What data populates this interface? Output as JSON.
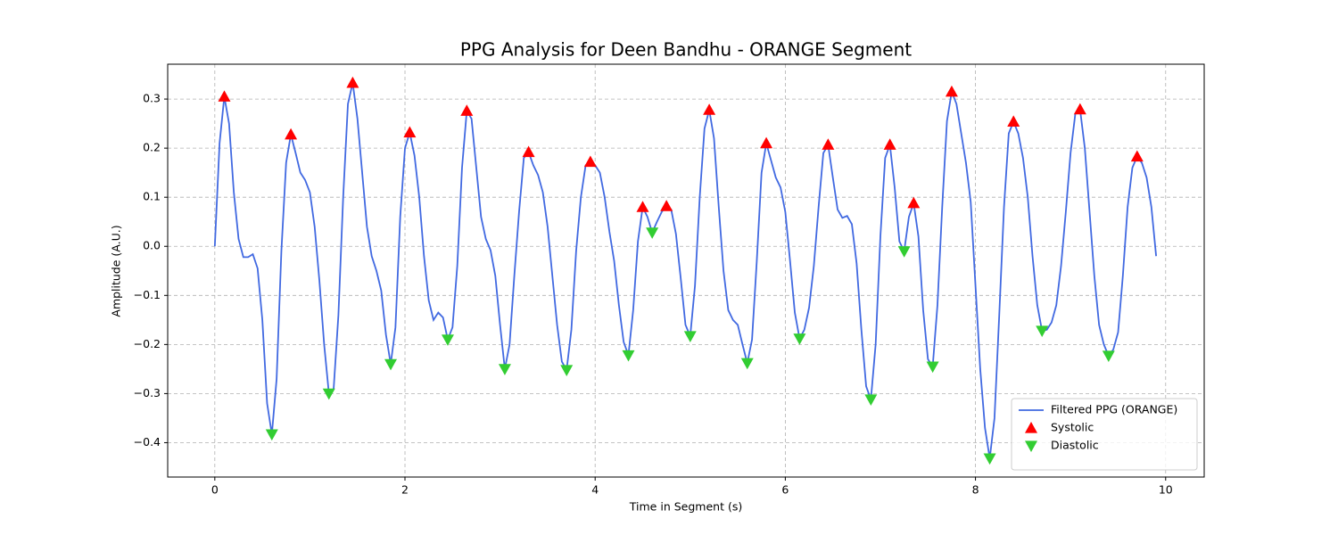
{
  "chart_data": {
    "type": "line",
    "title": "PPG Analysis for Deen Bandhu - ORANGE Segment",
    "xlabel": "Time in Segment (s)",
    "ylabel": "Amplitude (A.U.)",
    "xlim": [
      -0.4955,
      10.4055
    ],
    "ylim": [
      -0.47,
      0.371
    ],
    "xticks": [
      0,
      2,
      4,
      6,
      8,
      10
    ],
    "yticks": [
      {
        "value": -0.4,
        "label": "−0.4"
      },
      {
        "value": -0.3,
        "label": "−0.3"
      },
      {
        "value": -0.2,
        "label": "−0.2"
      },
      {
        "value": -0.1,
        "label": "−0.1"
      },
      {
        "value": 0,
        "label": "0.0"
      },
      0.1,
      0.2,
      0.3
    ],
    "grid": true,
    "legend": "lower right",
    "series": [
      {
        "name": "Filtered PPG (ORANGE)",
        "color": "#4169e1",
        "marker": "none",
        "x": [
          0,
          0.05,
          0.1,
          0.15,
          0.2,
          0.25,
          0.3,
          0.35,
          0.4,
          0.45,
          0.5,
          0.55,
          0.6,
          0.65,
          0.7,
          0.75,
          0.8,
          0.85,
          0.9,
          0.95,
          1.0,
          1.05,
          1.1,
          1.15,
          1.2,
          1.25,
          1.3,
          1.35,
          1.4,
          1.45,
          1.5,
          1.55,
          1.6,
          1.65,
          1.7,
          1.75,
          1.8,
          1.85,
          1.9,
          1.95,
          2.0,
          2.05,
          2.1,
          2.15,
          2.2,
          2.25,
          2.3,
          2.35,
          2.4,
          2.45,
          2.5,
          2.55,
          2.6,
          2.65,
          2.7,
          2.75,
          2.8,
          2.85,
          2.9,
          2.95,
          3.0,
          3.05,
          3.1,
          3.15,
          3.2,
          3.25,
          3.3,
          3.35,
          3.4,
          3.45,
          3.5,
          3.55,
          3.6,
          3.65,
          3.7,
          3.75,
          3.8,
          3.85,
          3.9,
          3.95,
          4.0,
          4.05,
          4.1,
          4.15,
          4.2,
          4.25,
          4.3,
          4.35,
          4.4,
          4.45,
          4.5,
          4.55,
          4.6,
          4.65,
          4.7,
          4.75,
          4.8,
          4.85,
          4.9,
          4.95,
          5.0,
          5.05,
          5.1,
          5.15,
          5.2,
          5.25,
          5.3,
          5.35,
          5.4,
          5.45,
          5.5,
          5.55,
          5.6,
          5.65,
          5.7,
          5.75,
          5.8,
          5.85,
          5.9,
          5.95,
          6.0,
          6.05,
          6.1,
          6.15,
          6.2,
          6.25,
          6.3,
          6.35,
          6.4,
          6.45,
          6.5,
          6.55,
          6.6,
          6.65,
          6.7,
          6.75,
          6.8,
          6.85,
          6.9,
          6.95,
          7.0,
          7.05,
          7.1,
          7.15,
          7.2,
          7.25,
          7.3,
          7.35,
          7.4,
          7.45,
          7.5,
          7.55,
          7.6,
          7.65,
          7.7,
          7.75,
          7.8,
          7.85,
          7.9,
          7.95,
          8.0,
          8.05,
          8.1,
          8.15,
          8.2,
          8.25,
          8.3,
          8.35,
          8.4,
          8.45,
          8.5,
          8.55,
          8.6,
          8.65,
          8.7,
          8.75,
          8.8,
          8.85,
          8.9,
          8.95,
          9.0,
          9.05,
          9.1,
          9.15,
          9.2,
          9.25,
          9.3,
          9.35,
          9.4,
          9.45,
          9.5,
          9.55,
          9.6,
          9.65,
          9.7,
          9.75,
          9.8,
          9.85,
          9.9
        ],
        "values": [
          0.0,
          0.21,
          0.305,
          0.25,
          0.11,
          0.015,
          -0.022,
          -0.022,
          -0.016,
          -0.045,
          -0.15,
          -0.32,
          -0.383,
          -0.27,
          -0.01,
          0.17,
          0.228,
          0.19,
          0.15,
          0.135,
          0.11,
          0.04,
          -0.07,
          -0.2,
          -0.3,
          -0.29,
          -0.14,
          0.1,
          0.29,
          0.333,
          0.26,
          0.15,
          0.04,
          -0.02,
          -0.05,
          -0.09,
          -0.18,
          -0.24,
          -0.165,
          0.06,
          0.2,
          0.232,
          0.185,
          0.1,
          -0.02,
          -0.11,
          -0.15,
          -0.135,
          -0.145,
          -0.19,
          -0.165,
          -0.04,
          0.16,
          0.276,
          0.26,
          0.16,
          0.06,
          0.015,
          -0.008,
          -0.06,
          -0.16,
          -0.25,
          -0.2,
          -0.06,
          0.07,
          0.18,
          0.192,
          0.165,
          0.145,
          0.11,
          0.04,
          -0.06,
          -0.16,
          -0.235,
          -0.252,
          -0.17,
          -0.01,
          0.1,
          0.165,
          0.172,
          0.165,
          0.15,
          0.1,
          0.03,
          -0.03,
          -0.12,
          -0.195,
          -0.222,
          -0.13,
          0.01,
          0.08,
          0.06,
          0.028,
          0.05,
          0.07,
          0.082,
          0.075,
          0.025,
          -0.065,
          -0.16,
          -0.183,
          -0.08,
          0.1,
          0.24,
          0.278,
          0.22,
          0.08,
          -0.05,
          -0.13,
          -0.15,
          -0.16,
          -0.2,
          -0.238,
          -0.19,
          -0.03,
          0.15,
          0.21,
          0.175,
          0.14,
          0.12,
          0.07,
          -0.03,
          -0.135,
          -0.188,
          -0.17,
          -0.125,
          -0.04,
          0.08,
          0.19,
          0.207,
          0.14,
          0.075,
          0.058,
          0.062,
          0.045,
          -0.035,
          -0.17,
          -0.285,
          -0.312,
          -0.2,
          0.02,
          0.18,
          0.207,
          0.12,
          0.01,
          -0.01,
          0.06,
          0.088,
          0.02,
          -0.13,
          -0.23,
          -0.245,
          -0.12,
          0.08,
          0.255,
          0.315,
          0.29,
          0.23,
          0.17,
          0.09,
          -0.08,
          -0.25,
          -0.37,
          -0.432,
          -0.35,
          -0.14,
          0.08,
          0.23,
          0.254,
          0.23,
          0.18,
          0.1,
          -0.02,
          -0.12,
          -0.172,
          -0.17,
          -0.155,
          -0.12,
          -0.04,
          0.07,
          0.19,
          0.27,
          0.279,
          0.2,
          0.07,
          -0.06,
          -0.16,
          -0.2,
          -0.223,
          -0.21,
          -0.175,
          -0.06,
          0.08,
          0.16,
          0.183,
          0.17,
          0.14,
          0.08,
          -0.02
        ]
      },
      {
        "name": "Systolic",
        "color": "#ff0000",
        "marker": "triangle-up",
        "x": [
          0.1,
          0.8,
          1.45,
          2.05,
          2.65,
          3.3,
          3.95,
          4.5,
          4.75,
          5.2,
          5.8,
          6.45,
          7.1,
          7.35,
          7.75,
          8.4,
          9.1,
          9.7
        ],
        "values": [
          0.305,
          0.228,
          0.333,
          0.232,
          0.276,
          0.192,
          0.172,
          0.08,
          0.082,
          0.278,
          0.21,
          0.207,
          0.207,
          0.088,
          0.315,
          0.254,
          0.279,
          0.183
        ]
      },
      {
        "name": "Diastolic",
        "color": "#32cd32",
        "marker": "triangle-down",
        "x": [
          0.6,
          1.2,
          1.85,
          2.45,
          3.05,
          3.7,
          4.35,
          4.6,
          5.0,
          5.6,
          6.15,
          6.9,
          7.25,
          7.55,
          8.15,
          8.7,
          9.4
        ],
        "values": [
          -0.383,
          -0.3,
          -0.24,
          -0.19,
          -0.25,
          -0.252,
          -0.222,
          0.028,
          -0.183,
          -0.238,
          -0.188,
          -0.312,
          -0.01,
          -0.245,
          -0.432,
          -0.172,
          -0.223
        ]
      }
    ]
  }
}
